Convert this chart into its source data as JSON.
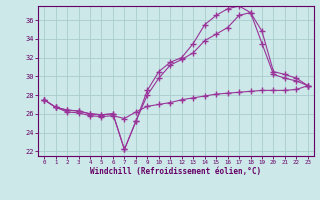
{
  "xlabel": "Windchill (Refroidissement éolien,°C)",
  "background_color": "#cce8e8",
  "grid_color": "#aacccc",
  "line_color": "#993399",
  "xlim": [
    -0.5,
    23.5
  ],
  "ylim": [
    21.5,
    37.5
  ],
  "xticks": [
    0,
    1,
    2,
    3,
    4,
    5,
    6,
    7,
    8,
    9,
    10,
    11,
    12,
    13,
    14,
    15,
    16,
    17,
    18,
    19,
    20,
    21,
    22,
    23
  ],
  "yticks": [
    22,
    24,
    26,
    28,
    30,
    32,
    34,
    36
  ],
  "line1_y": [
    27.5,
    26.7,
    26.2,
    26.1,
    25.8,
    25.7,
    25.8,
    25.5,
    26.2,
    26.8,
    27.0,
    27.2,
    27.5,
    27.7,
    27.9,
    28.1,
    28.2,
    28.3,
    28.4,
    28.5,
    28.5,
    28.5,
    28.6,
    29.0
  ],
  "line2_y": [
    27.5,
    26.7,
    26.4,
    26.3,
    26.0,
    25.9,
    26.0,
    22.2,
    25.2,
    28.5,
    30.5,
    31.5,
    32.0,
    33.5,
    35.5,
    36.5,
    37.2,
    37.5,
    36.8,
    33.5,
    30.2,
    29.8,
    29.5,
    29.0
  ],
  "line3_y": [
    27.5,
    26.7,
    26.4,
    26.3,
    26.0,
    25.9,
    26.0,
    22.2,
    25.2,
    28.0,
    29.8,
    31.2,
    31.8,
    32.5,
    33.8,
    34.5,
    35.2,
    36.5,
    36.8,
    34.8,
    30.5,
    30.2,
    29.8,
    29.0
  ]
}
